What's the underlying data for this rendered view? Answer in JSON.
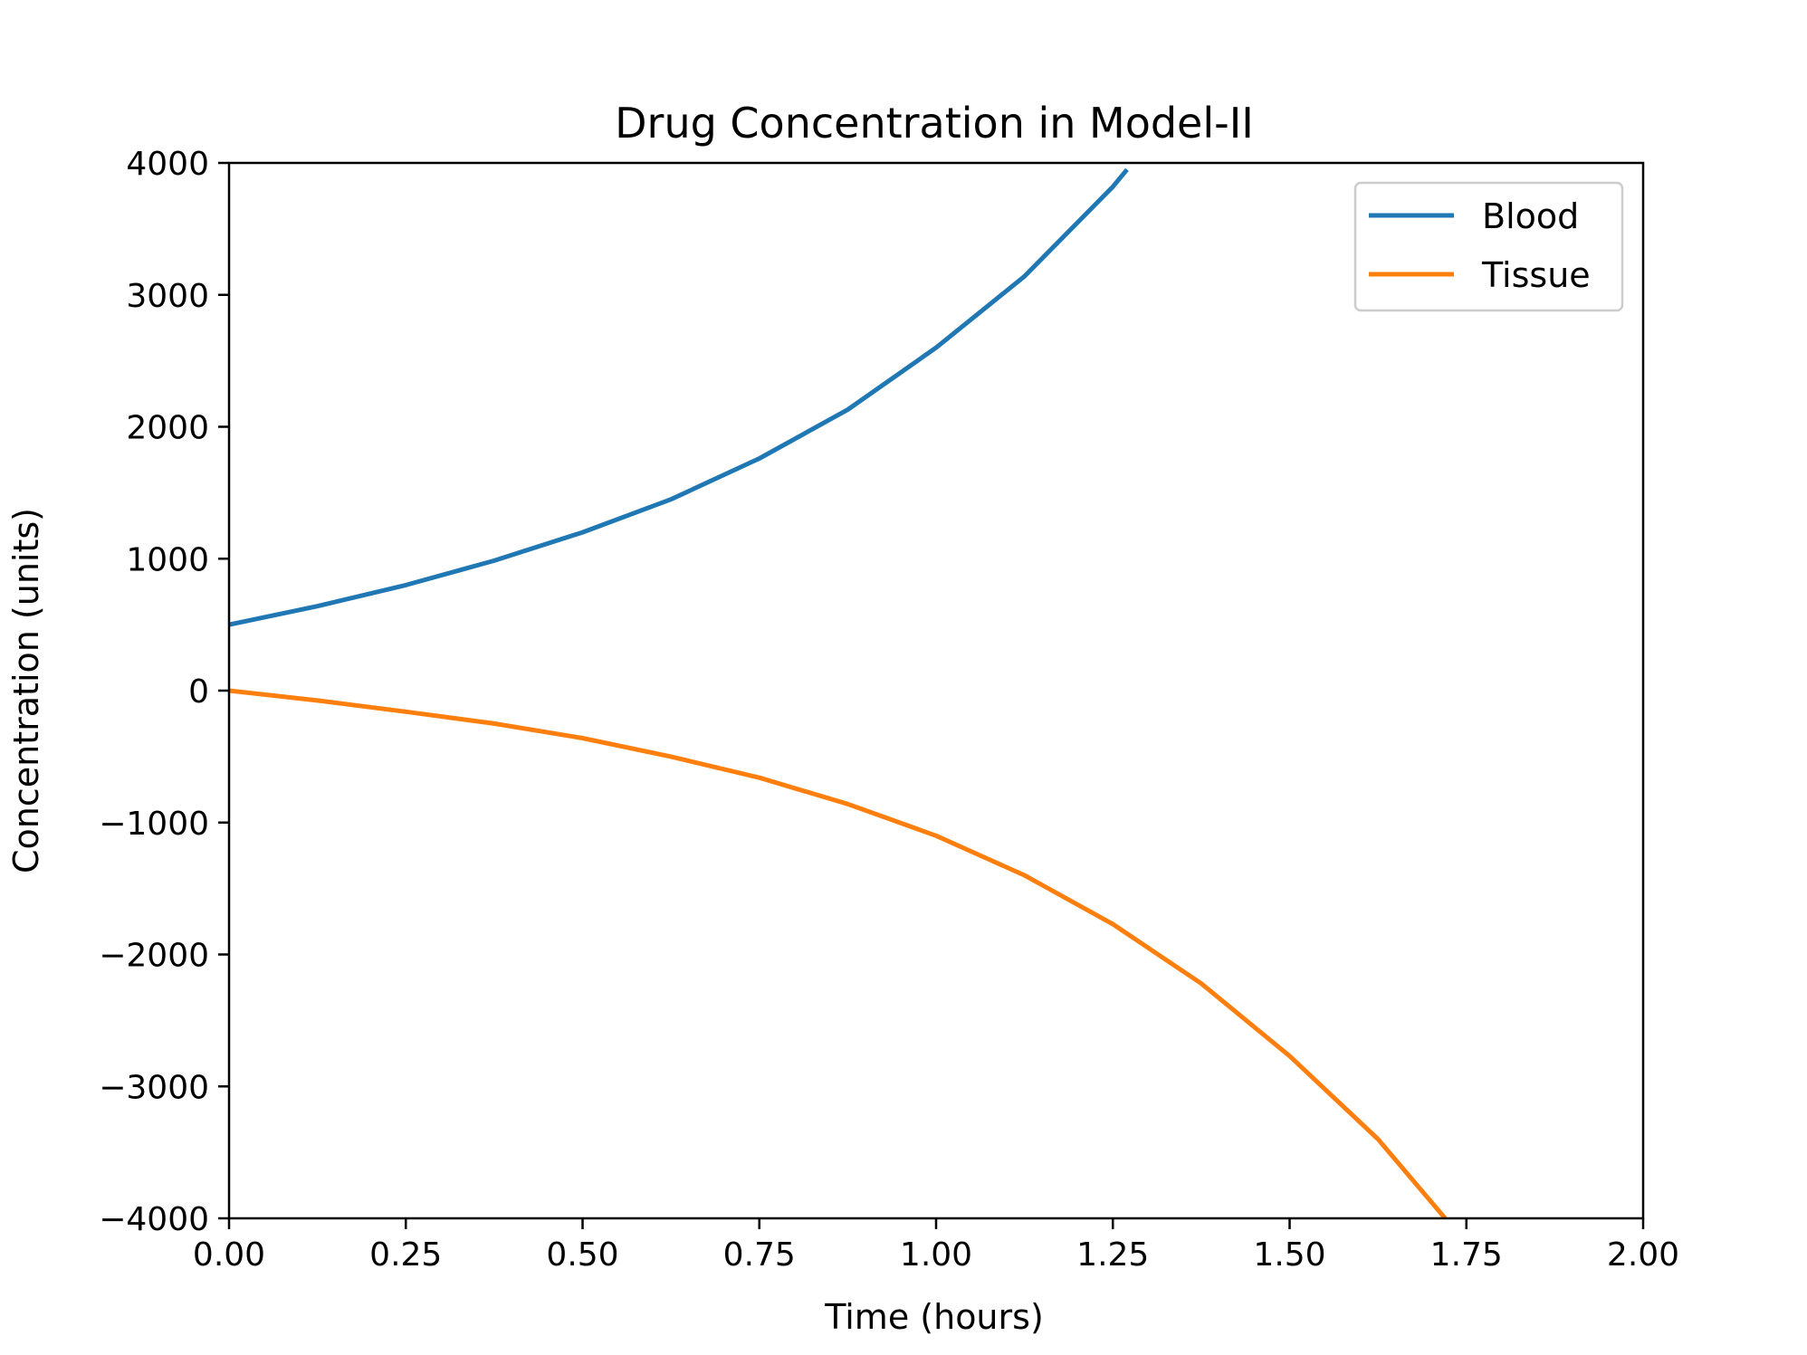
{
  "chart_data": {
    "type": "line",
    "title": "Drug Concentration in Model-II",
    "xlabel": "Time (hours)",
    "ylabel": "Concentration (units)",
    "xlim": [
      0,
      2
    ],
    "ylim": [
      -4000,
      4000
    ],
    "x_ticks": [
      0,
      0.25,
      0.5,
      0.75,
      1.0,
      1.25,
      1.5,
      1.75,
      2.0
    ],
    "x_tick_labels": [
      "0.00",
      "0.25",
      "0.50",
      "0.75",
      "1.00",
      "1.25",
      "1.50",
      "1.75",
      "2.00"
    ],
    "y_ticks": [
      4000,
      3000,
      2000,
      1000,
      0,
      -1000,
      -2000,
      -3000,
      -4000
    ],
    "y_tick_labels": [
      "4000",
      "3000",
      "2000",
      "1000",
      "0",
      "−1000",
      "−2000",
      "−3000",
      "−4000"
    ],
    "grid": false,
    "legend_position": "top-right",
    "series": [
      {
        "name": "Blood",
        "color": "#1f77b4",
        "x": [
          0,
          0.125,
          0.25,
          0.375,
          0.5,
          0.625,
          0.75,
          0.875,
          1.0,
          1.125,
          1.25,
          1.27
        ],
        "y": [
          500,
          640,
          800,
          985,
          1200,
          1450,
          1760,
          2130,
          2600,
          3140,
          3820,
          3950
        ]
      },
      {
        "name": "Tissue",
        "color": "#ff7f0e",
        "x": [
          0,
          0.125,
          0.25,
          0.375,
          0.5,
          0.625,
          0.75,
          0.875,
          1.0,
          1.125,
          1.25,
          1.375,
          1.5,
          1.625,
          1.72
        ],
        "y": [
          0,
          -75,
          -160,
          -250,
          -360,
          -500,
          -660,
          -860,
          -1100,
          -1400,
          -1770,
          -2220,
          -2770,
          -3400,
          -4000
        ]
      }
    ]
  }
}
